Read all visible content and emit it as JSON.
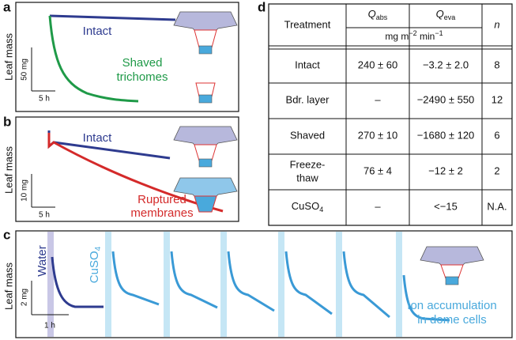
{
  "panels": {
    "a": {
      "label": "a",
      "y_label": "Leaf mass",
      "scale_y": "50 mg",
      "scale_x": "5 h",
      "intact": "Intact",
      "shaved": [
        "Shaved",
        "trichomes"
      ]
    },
    "b": {
      "label": "b",
      "y_label": "Leaf mass",
      "scale_y": "10 mg",
      "scale_x": "5 h",
      "intact": "Intact",
      "ruptured": [
        "Ruptured",
        "membranes"
      ]
    },
    "c": {
      "label": "c",
      "y_label": "Leaf mass",
      "scale_y": "2 mg",
      "scale_x": "1 h",
      "water": "Water",
      "cuso4": {
        "text": "CuSO",
        "sub": "4"
      },
      "note": [
        "Ion accumulation",
        "in dome cells"
      ]
    },
    "d": {
      "label": "d",
      "table": {
        "header": {
          "treatment": "Treatment",
          "qabs": {
            "symbol": "Q",
            "sub": "abs"
          },
          "qeva": {
            "symbol": "Q",
            "sub": "eva"
          },
          "n": "n",
          "units": {
            "a": "mg m",
            "b": "−2",
            "c": " min",
            "d": "−1"
          }
        },
        "rows": [
          [
            "Intact",
            "240 ± 60",
            "−3.2 ± 2.0",
            "8"
          ],
          [
            "Bdr. layer",
            "–",
            "−2490 ± 550",
            "12"
          ],
          [
            "Shaved",
            "270 ± 10",
            "−1680 ± 120",
            "6"
          ],
          [
            [
              "Freeze-",
              "thaw"
            ],
            "76 ± 4",
            "−12 ± 2",
            "2"
          ],
          [
            {
              "text": "CuSO",
              "sub": "4"
            },
            "–",
            "<−15",
            "N.A."
          ]
        ]
      }
    }
  }
}
